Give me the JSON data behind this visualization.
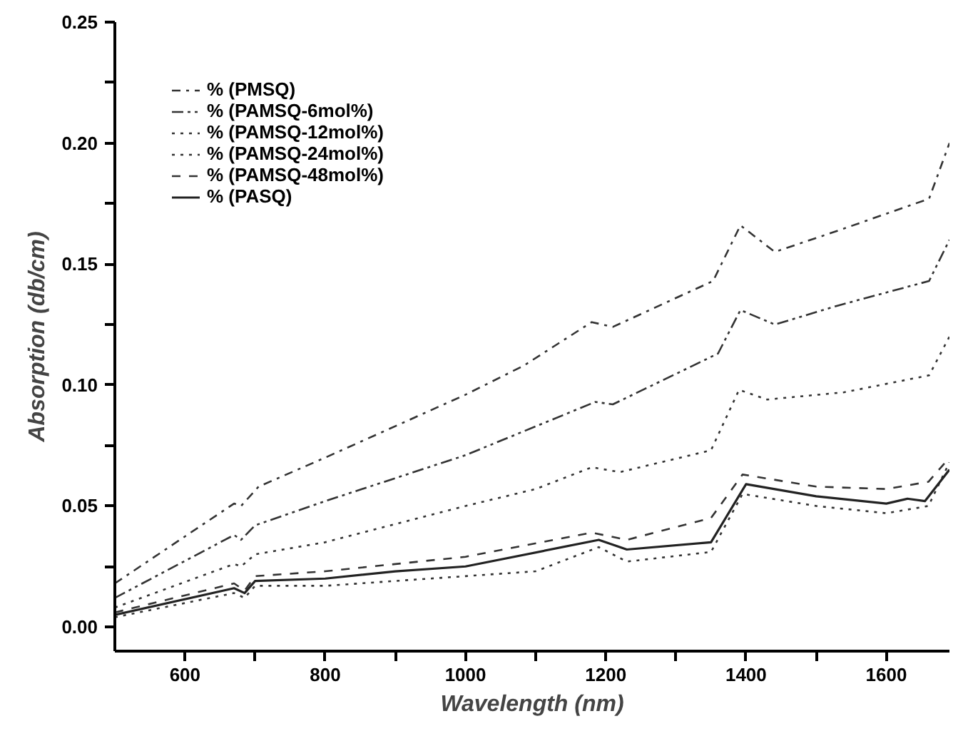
{
  "chart_data": {
    "type": "line",
    "xlabel": "Wavelength (nm)",
    "ylabel": "Absorption (db/cm)",
    "xlim": [
      500,
      1690
    ],
    "ylim": [
      -0.01,
      0.25
    ],
    "xticks": [
      600,
      {
        "value": 700,
        "label": null
      },
      800,
      {
        "value": 900,
        "label": null
      },
      1000,
      {
        "value": 1100,
        "label": null
      },
      1200,
      {
        "value": 1300,
        "label": null
      },
      1400,
      {
        "value": 1500,
        "label": null
      },
      1600
    ],
    "yticks": [
      {
        "value": 0.0,
        "label": "0.00"
      },
      {
        "value": 0.025,
        "label": null
      },
      0.05,
      {
        "value": 0.075,
        "label": null
      },
      {
        "value": 0.1,
        "label": "0.10"
      },
      {
        "value": 0.125,
        "label": null
      },
      0.15,
      {
        "value": 0.175,
        "label": null
      },
      {
        "value": 0.2,
        "label": "0.20"
      },
      {
        "value": 0.225,
        "label": null
      },
      0.25
    ],
    "grid": false,
    "legend": "top left",
    "marker": "none",
    "series": [
      {
        "name": "% (PMSQ)",
        "color": "#333333",
        "line_style": "dashdot",
        "x": [
          500,
          670,
          680,
          705,
          800,
          1000,
          1083,
          1180,
          1210,
          1353,
          1392,
          1441,
          1533,
          1661,
          1690
        ],
        "values": [
          0.018,
          0.051,
          0.05,
          0.058,
          0.07,
          0.096,
          0.108,
          0.126,
          0.124,
          0.143,
          0.166,
          0.155,
          0.164,
          0.177,
          0.2
        ]
      },
      {
        "name": "% (PAMSQ-6mol%)",
        "color": "#333333",
        "line_style": "dashdotdot",
        "x": [
          500,
          670,
          680,
          700,
          800,
          1000,
          1185,
          1210,
          1360,
          1392,
          1441,
          1533,
          1661,
          1690
        ],
        "values": [
          0.012,
          0.038,
          0.036,
          0.042,
          0.052,
          0.071,
          0.093,
          0.092,
          0.113,
          0.131,
          0.125,
          0.133,
          0.143,
          0.16
        ]
      },
      {
        "name": "% (PAMSQ-12mol%)",
        "color": "#333333",
        "line_style": "dotted",
        "x": [
          500,
          670,
          680,
          700,
          800,
          1000,
          1100,
          1180,
          1220,
          1350,
          1390,
          1430,
          1540,
          1661,
          1690
        ],
        "values": [
          0.008,
          0.026,
          0.025,
          0.03,
          0.035,
          0.05,
          0.057,
          0.066,
          0.064,
          0.073,
          0.098,
          0.094,
          0.097,
          0.104,
          0.12
        ]
      },
      {
        "name": "% (PAMSQ-24mol%)",
        "color": "#333333",
        "line_style": "dotted",
        "x": [
          500,
          670,
          685,
          700,
          800,
          900,
          1000,
          1100,
          1190,
          1230,
          1350,
          1395,
          1500,
          1600,
          1660,
          1690
        ],
        "values": [
          0.004,
          0.014,
          0.012,
          0.017,
          0.017,
          0.019,
          0.021,
          0.023,
          0.033,
          0.027,
          0.031,
          0.055,
          0.05,
          0.047,
          0.05,
          0.068
        ]
      },
      {
        "name": "% (PAMSQ-48mol%)",
        "color": "#333333",
        "line_style": "dashed",
        "x": [
          500,
          670,
          685,
          700,
          800,
          900,
          1000,
          1180,
          1230,
          1350,
          1395,
          1500,
          1600,
          1660,
          1690
        ],
        "values": [
          0.006,
          0.018,
          0.015,
          0.021,
          0.023,
          0.026,
          0.029,
          0.039,
          0.036,
          0.045,
          0.063,
          0.058,
          0.057,
          0.06,
          0.07
        ]
      },
      {
        "name": "% (PASQ)",
        "color": "#222222",
        "line_style": "solid",
        "x": [
          500,
          670,
          685,
          700,
          800,
          900,
          1000,
          1190,
          1230,
          1350,
          1400,
          1500,
          1600,
          1630,
          1655,
          1690
        ],
        "values": [
          0.005,
          0.016,
          0.014,
          0.019,
          0.02,
          0.023,
          0.025,
          0.036,
          0.032,
          0.035,
          0.059,
          0.054,
          0.051,
          0.053,
          0.052,
          0.065
        ]
      }
    ]
  }
}
